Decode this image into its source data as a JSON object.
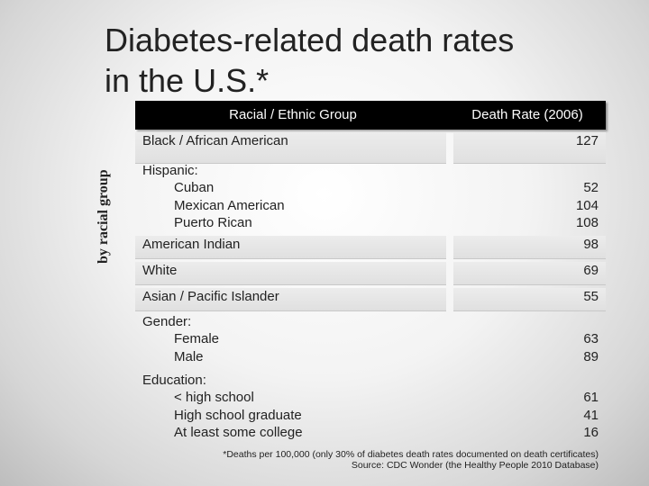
{
  "title_line1": "Diabetes-related death rates",
  "title_line2": "in the U.S.*",
  "side_label": "by racial group",
  "table": {
    "col1_header": "Racial / Ethnic Group",
    "col2_header": "Death Rate (2006)",
    "rows": [
      {
        "label": "Black / African American",
        "value": "127"
      },
      {
        "group": "Hispanic:",
        "subs": [
          "Cuban",
          "Mexican American",
          "Puerto Rican"
        ],
        "values": [
          "52",
          "104",
          "108"
        ]
      },
      {
        "label": "American Indian",
        "value": "98"
      },
      {
        "label": "White",
        "value": "69"
      },
      {
        "label": "Asian / Pacific Islander",
        "value": "55"
      },
      {
        "group": "Gender:",
        "subs": [
          "Female",
          "Male"
        ],
        "values": [
          "63",
          "89"
        ]
      },
      {
        "group": "Education:",
        "subs": [
          "< high school",
          "High school graduate",
          "At least some college"
        ],
        "values": [
          "61",
          "41",
          "16"
        ]
      }
    ]
  },
  "footnote_1": "*Deaths per 100,000 (only 30% of diabetes death rates documented on death certificates)",
  "footnote_2": "Source: CDC Wonder (the Healthy People 2010 Database)"
}
